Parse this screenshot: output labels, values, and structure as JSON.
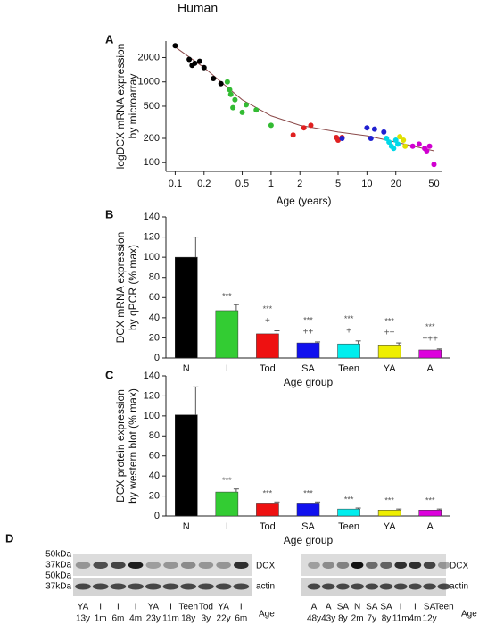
{
  "title": "Human",
  "chart_data": [
    {
      "type": "scatter",
      "panel": "A",
      "ylabel": [
        "logDCX mRNA expression",
        "by microarray"
      ],
      "xlabel": "Age (years)",
      "xlog": true,
      "ylog": true,
      "xlim": [
        0.08,
        60
      ],
      "ylim": [
        78,
        3200
      ],
      "xticks": [
        0.1,
        0.2,
        0.5,
        1,
        2,
        5,
        10,
        20,
        50
      ],
      "yticks": [
        100,
        200,
        500,
        1000,
        2000
      ],
      "series": [
        {
          "color": "#000000",
          "x": [
            0.1,
            0.14,
            0.15,
            0.16,
            0.18,
            0.2,
            0.25,
            0.3
          ],
          "values": [
            2800,
            1900,
            1600,
            1700,
            1800,
            1500,
            1100,
            950
          ]
        },
        {
          "color": "#33bb33",
          "x": [
            0.35,
            0.37,
            0.38,
            0.4,
            0.42,
            0.5,
            0.55,
            0.7,
            1.0
          ],
          "values": [
            1000,
            800,
            700,
            480,
            600,
            420,
            520,
            450,
            290
          ]
        },
        {
          "color": "#e02020",
          "x": [
            1.7,
            2.2,
            2.6,
            4.8,
            5.0,
            5.5
          ],
          "values": [
            220,
            270,
            290,
            205,
            190,
            205
          ]
        },
        {
          "color": "#2020d0",
          "x": [
            5.5,
            10,
            11,
            12,
            15
          ],
          "values": [
            200,
            270,
            200,
            260,
            240
          ]
        },
        {
          "color": "#00d8e8",
          "x": [
            16,
            17,
            18,
            19,
            20,
            21
          ],
          "values": [
            200,
            180,
            160,
            150,
            190,
            170
          ]
        },
        {
          "color": "#e0e000",
          "x": [
            22,
            24,
            25
          ],
          "values": [
            210,
            190,
            160
          ]
        },
        {
          "color": "#d000d0",
          "x": [
            30,
            35,
            40,
            42,
            45,
            50
          ],
          "values": [
            160,
            170,
            150,
            140,
            160,
            95
          ]
        }
      ],
      "fit": {
        "color": "#8b4a4a",
        "x": [
          0.1,
          0.2,
          0.5,
          1,
          2,
          5,
          10,
          20,
          50
        ],
        "values": [
          2700,
          1500,
          600,
          380,
          290,
          240,
          215,
          180,
          140
        ]
      }
    },
    {
      "type": "bar",
      "panel": "B",
      "ylabel": [
        "DCX mRNA expression",
        "by qPCR (% max)"
      ],
      "xlabel": "Age group",
      "categories": [
        "N",
        "I",
        "Tod",
        "SA",
        "Teen",
        "YA",
        "A"
      ],
      "values": [
        100,
        47,
        24,
        15,
        14,
        13,
        8
      ],
      "errors": [
        20,
        6,
        3,
        1,
        3,
        2,
        1
      ],
      "colors": [
        "#000000",
        "#33cc33",
        "#ee1111",
        "#1111ee",
        "#00eeee",
        "#eeee00",
        "#dd00dd"
      ],
      "sig": [
        null,
        "***",
        "***",
        "***",
        "***",
        "***",
        "***"
      ],
      "sig2": [
        null,
        null,
        "+",
        "++",
        "+",
        "++",
        "+++"
      ],
      "ylim": [
        0,
        140
      ],
      "yticks": [
        0,
        20,
        40,
        60,
        80,
        100,
        120,
        140
      ]
    },
    {
      "type": "bar",
      "panel": "C",
      "ylabel": [
        "DCX protein expression",
        "by western blot (% max)"
      ],
      "xlabel": "Age group",
      "categories": [
        "N",
        "I",
        "Tod",
        "SA",
        "Teen",
        "YA",
        "A"
      ],
      "values": [
        101,
        24,
        13,
        13,
        7,
        6,
        6
      ],
      "errors": [
        28,
        3,
        1,
        1,
        1,
        1,
        1
      ],
      "colors": [
        "#000000",
        "#33cc33",
        "#ee1111",
        "#1111ee",
        "#00eeee",
        "#eeee00",
        "#dd00dd"
      ],
      "sig": [
        null,
        "***",
        "***",
        "***",
        "***",
        "***",
        "***"
      ],
      "sig2": [
        null,
        null,
        null,
        null,
        null,
        null,
        null
      ],
      "ylim": [
        0,
        140
      ],
      "yticks": [
        0,
        20,
        40,
        60,
        80,
        100,
        120,
        140
      ]
    }
  ],
  "blot": {
    "panel": "D",
    "left": {
      "markers": [
        "50kDa",
        "37kDa",
        "50kDa",
        "37kDa"
      ],
      "bands": [
        "DCX",
        "actin"
      ],
      "lanes": [
        "YA",
        "I",
        "I",
        "I",
        "YA",
        "I",
        "Teen",
        "Tod",
        "YA",
        "I"
      ],
      "ages": [
        "13y",
        "1m",
        "6m",
        "4m",
        "23y",
        "11m",
        "18y",
        "3y",
        "22y",
        "6m"
      ],
      "age_label": "Age"
    },
    "right": {
      "bands": [
        "DCX",
        "actin"
      ],
      "lanes": [
        "A",
        "A",
        "SA",
        "N",
        "SA",
        "SA",
        "I",
        "I",
        "SA",
        "Teen"
      ],
      "ages": [
        "48y",
        "43y",
        "8y",
        "2m",
        "7y",
        "8y",
        "11m",
        "4m",
        "12y",
        null
      ],
      "age_label": "Age"
    }
  }
}
